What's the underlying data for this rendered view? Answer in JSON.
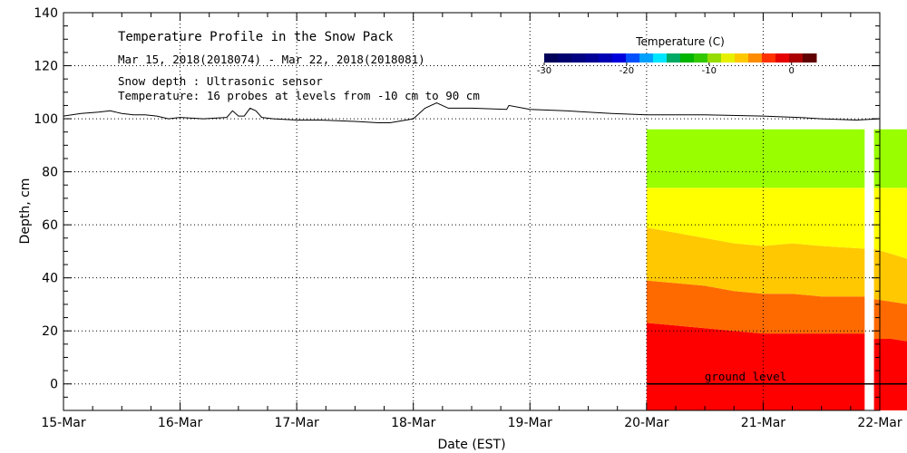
{
  "chart_data": {
    "type": "area",
    "title": "Temperature Profile in the Snow Pack",
    "subtitle": "Mar 15, 2018(2018074) - Mar 22, 2018(2018081)",
    "annotations": [
      "Snow depth : Ultrasonic sensor",
      "Temperature: 16 probes at levels from -10 cm to 90 cm"
    ],
    "xlabel": "Date (EST)",
    "ylabel": "Depth, cm",
    "x_ticks": [
      "15-Mar",
      "16-Mar",
      "17-Mar",
      "18-Mar",
      "19-Mar",
      "20-Mar",
      "21-Mar",
      "22-Mar"
    ],
    "xlim": [
      0,
      7
    ],
    "ylim": [
      -10,
      140
    ],
    "y_ticks": [
      0,
      20,
      40,
      60,
      80,
      100,
      120,
      140
    ],
    "grid": true,
    "colorbar": {
      "title": "Temperature (C)",
      "range": [
        -30,
        3
      ],
      "ticks": [
        -30,
        -20,
        -10,
        0
      ],
      "colors": [
        "#00005a",
        "#00006e",
        "#000082",
        "#000096",
        "#0000b4",
        "#0000dc",
        "#0050ff",
        "#00a0ff",
        "#00e6ff",
        "#00aa64",
        "#00b400",
        "#32c800",
        "#96dc00",
        "#e6f000",
        "#ffc800",
        "#ff8c00",
        "#ff3200",
        "#e60000",
        "#aa0000",
        "#600000"
      ]
    },
    "ground_label": "ground level",
    "snow_depth": {
      "name": "Snow depth",
      "x": [
        0,
        0.15,
        0.3,
        0.4,
        0.45,
        0.5,
        0.6,
        0.7,
        0.8,
        0.9,
        1.0,
        1.2,
        1.4,
        1.45,
        1.5,
        1.55,
        1.6,
        1.65,
        1.7,
        1.8,
        2.0,
        2.2,
        2.5,
        2.7,
        2.8,
        3.0,
        3.1,
        3.2,
        3.3,
        3.5,
        3.8,
        3.82,
        4.0,
        4.3,
        4.7,
        5.0,
        5.5,
        6.0,
        6.3,
        6.5,
        6.8,
        7.0
      ],
      "y": [
        101,
        102,
        102.5,
        103,
        102.5,
        102,
        101.5,
        101.5,
        101,
        100,
        100.5,
        100,
        100.5,
        103,
        101,
        101,
        104,
        103,
        100.5,
        100,
        99.5,
        99.5,
        99,
        98.5,
        98.5,
        100,
        104,
        106,
        104,
        104,
        103.5,
        105,
        103.5,
        103,
        102,
        101.5,
        101.5,
        101,
        100.5,
        100,
        99.5,
        100
      ]
    },
    "temperature_profile": {
      "top_cm": 96,
      "bottom_cm": -10,
      "blocks": [
        {
          "x": [
            5.0,
            5.25,
            5.5,
            5.75,
            6.0,
            6.25,
            6.5,
            6.87
          ],
          "layers": [
            {
              "temp": 0,
              "color": "#ff0000",
              "upper": [
                23,
                22,
                21,
                20,
                19,
                19,
                19,
                19
              ]
            },
            {
              "temp": -1,
              "color": "#ff6a00",
              "upper": [
                39,
                38,
                37,
                35,
                34,
                34,
                33,
                33
              ]
            },
            {
              "temp": -2,
              "color": "#ffc800",
              "upper": [
                59,
                57,
                55,
                53,
                52,
                53,
                52,
                51
              ]
            },
            {
              "temp": -3,
              "color": "#ffff00",
              "upper": [
                74,
                74,
                74,
                74,
                74,
                74,
                74,
                74
              ]
            },
            {
              "temp": -4,
              "color": "#99ff00",
              "upper": [
                96,
                96,
                96,
                96,
                96,
                96,
                96,
                96
              ]
            }
          ]
        },
        {
          "x": [
            6.95,
            7.1,
            7.25
          ],
          "layers": [
            {
              "temp": 0,
              "color": "#ff0000",
              "upper": [
                17,
                17,
                16
              ]
            },
            {
              "temp": -1,
              "color": "#ff6a00",
              "upper": [
                32,
                31,
                30
              ]
            },
            {
              "temp": -2,
              "color": "#ffc800",
              "upper": [
                51,
                49,
                47
              ]
            },
            {
              "temp": -3,
              "color": "#ffff00",
              "upper": [
                74,
                74,
                74
              ]
            },
            {
              "temp": -4,
              "color": "#99ff00",
              "upper": [
                96,
                96,
                96
              ]
            }
          ]
        }
      ]
    }
  }
}
